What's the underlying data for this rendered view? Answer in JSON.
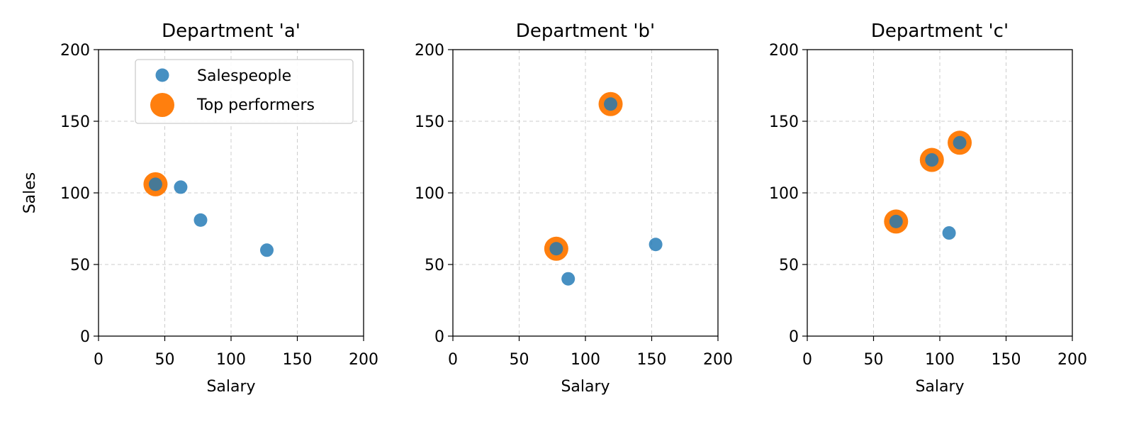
{
  "chart_data": [
    {
      "type": "scatter",
      "title": "Department 'a'",
      "xlabel": "Salary",
      "ylabel": "Sales",
      "xlim": [
        0,
        200
      ],
      "ylim": [
        0,
        200
      ],
      "xticks": [
        0,
        50,
        100,
        150,
        200
      ],
      "yticks": [
        0,
        50,
        100,
        150,
        200
      ],
      "grid": true,
      "legend": "top-right",
      "series": [
        {
          "name": "Salespeople",
          "color": "#1f77b4",
          "points": [
            [
              43,
              106
            ],
            [
              62,
              104
            ],
            [
              77,
              81
            ],
            [
              127,
              60
            ]
          ]
        },
        {
          "name": "Top performers",
          "color": "#ff7f0e",
          "points": [
            [
              43,
              106
            ]
          ]
        }
      ]
    },
    {
      "type": "scatter",
      "title": "Department 'b'",
      "xlabel": "Salary",
      "ylabel": "",
      "xlim": [
        0,
        200
      ],
      "ylim": [
        0,
        200
      ],
      "xticks": [
        0,
        50,
        100,
        150,
        200
      ],
      "yticks": [
        0,
        50,
        100,
        150,
        200
      ],
      "grid": true,
      "series": [
        {
          "name": "Salespeople",
          "color": "#1f77b4",
          "points": [
            [
              78,
              61
            ],
            [
              87,
              40
            ],
            [
              119,
              162
            ],
            [
              153,
              64
            ]
          ]
        },
        {
          "name": "Top performers",
          "color": "#ff7f0e",
          "points": [
            [
              78,
              61
            ],
            [
              119,
              162
            ]
          ]
        }
      ]
    },
    {
      "type": "scatter",
      "title": "Department 'c'",
      "xlabel": "Salary",
      "ylabel": "",
      "xlim": [
        0,
        200
      ],
      "ylim": [
        0,
        200
      ],
      "xticks": [
        0,
        50,
        100,
        150,
        200
      ],
      "yticks": [
        0,
        50,
        100,
        150,
        200
      ],
      "grid": true,
      "series": [
        {
          "name": "Salespeople",
          "color": "#1f77b4",
          "points": [
            [
              67,
              80
            ],
            [
              94,
              123
            ],
            [
              107,
              72
            ],
            [
              115,
              135
            ]
          ]
        },
        {
          "name": "Top performers",
          "color": "#ff7f0e",
          "points": [
            [
              67,
              80
            ],
            [
              94,
              123
            ],
            [
              115,
              135
            ]
          ]
        }
      ]
    }
  ]
}
